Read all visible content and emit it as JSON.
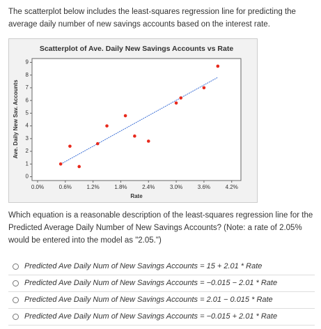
{
  "intro": "The scatterplot below includes the least-squares regression line for predicting the average daily number of new savings accounts based on the interest rate.",
  "chart_data": {
    "type": "scatter",
    "title": "Scatterplot of Ave. Daily New Savings Accounts vs Rate",
    "xlabel": "Rate",
    "ylabel": "Ave. Daily New Sav. Accounts",
    "x": [
      0.5,
      0.7,
      0.9,
      1.3,
      1.5,
      1.9,
      2.1,
      2.4,
      3.0,
      3.1,
      3.6,
      3.9
    ],
    "values": [
      1.0,
      2.4,
      0.8,
      2.6,
      4.0,
      4.8,
      3.2,
      2.8,
      5.8,
      6.2,
      7.0,
      8.7
    ],
    "color": "#e8291c",
    "regression_line": {
      "x": [
        0.5,
        3.9
      ],
      "y": [
        0.99,
        7.82
      ],
      "color": "#3b6fd6"
    },
    "xlim": [
      -0.12,
      4.4
    ],
    "ylim": [
      -0.3,
      9.3
    ],
    "xticks": [
      {
        "value": 0,
        "label": "0.0%"
      },
      {
        "value": 0.6,
        "label": "0.6%"
      },
      {
        "value": 1.2,
        "label": "1.2%"
      },
      {
        "value": 1.8,
        "label": "1.8%"
      },
      {
        "value": 2.4,
        "label": "2.4%"
      },
      {
        "value": 3.0,
        "label": "3.0%"
      },
      {
        "value": 3.6,
        "label": "3.6%"
      },
      {
        "value": 4.2,
        "label": "4.2%"
      }
    ],
    "yticks": [
      0,
      1,
      2,
      3,
      4,
      5,
      6,
      7,
      8,
      9
    ]
  },
  "question": "Which equation is a reasonable description of the least-squares regression line for the Predicted Average Daily Number of New Savings Accounts? (Note: a rate of 2.05% would be entered into the model as \"2.05.\")",
  "options": [
    "Predicted Ave Daily Num of New Savings Accounts = 15 + 2.01 * Rate",
    "Predicted Ave Daily Num of New Savings Accounts = −0.015 − 2.01 * Rate",
    "Predicted Ave Daily Num of New Savings Accounts = 2.01 − 0.015 * Rate",
    "Predicted Ave Daily Num of New Savings Accounts = −0.015 + 2.01 * Rate"
  ]
}
